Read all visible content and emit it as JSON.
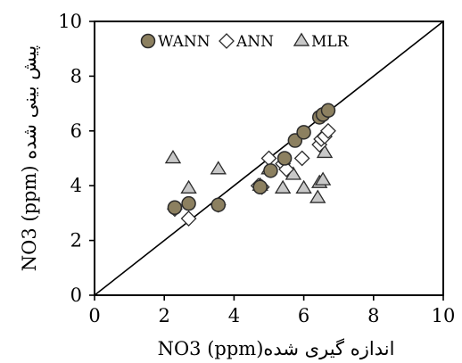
{
  "chart_data": {
    "type": "scatter",
    "title": "",
    "xlabel": "NO3 (ppm)اندازه گیری شده",
    "ylabel": "NO3 (ppm) پیش بینی شده",
    "xlim": [
      0,
      10
    ],
    "ylim": [
      0,
      10
    ],
    "xticks": [
      "0",
      "2",
      "4",
      "6",
      "8",
      "10"
    ],
    "yticks": [
      "0",
      "2",
      "4",
      "6",
      "8",
      "10"
    ],
    "grid": false,
    "legend_position": "top",
    "reference_line": {
      "from": [
        0,
        0
      ],
      "to": [
        10,
        10
      ]
    },
    "series": [
      {
        "name": "WANN",
        "marker": "circle",
        "fill": "#8c8060",
        "stroke": "#2b2b2b",
        "x": [
          2.3,
          2.7,
          3.55,
          4.75,
          5.05,
          5.45,
          5.75,
          6.0,
          6.45,
          6.55,
          6.7
        ],
        "y": [
          3.2,
          3.35,
          3.3,
          3.95,
          4.55,
          5.0,
          5.65,
          5.95,
          6.5,
          6.6,
          6.75
        ]
      },
      {
        "name": "ANN",
        "marker": "diamond",
        "fill": "#ffffff",
        "stroke": "#2b2b2b",
        "x": [
          2.3,
          2.7,
          3.55,
          4.7,
          4.8,
          5.0,
          5.4,
          5.5,
          5.95,
          6.45,
          6.5,
          6.6,
          6.7
        ],
        "y": [
          3.15,
          2.8,
          3.3,
          4.0,
          3.95,
          5.0,
          4.8,
          4.6,
          5.0,
          5.5,
          5.7,
          5.8,
          6.0
        ]
      },
      {
        "name": "MLR",
        "marker": "triangle",
        "fill": "#c8c8c8",
        "stroke": "#2b2b2b",
        "x": [
          2.25,
          2.7,
          3.55,
          4.75,
          5.0,
          5.4,
          5.7,
          6.0,
          6.4,
          6.45,
          6.55,
          6.6
        ],
        "y": [
          5.0,
          3.9,
          4.6,
          4.0,
          4.6,
          3.9,
          4.4,
          3.9,
          3.55,
          4.1,
          4.2,
          5.2
        ]
      }
    ]
  }
}
